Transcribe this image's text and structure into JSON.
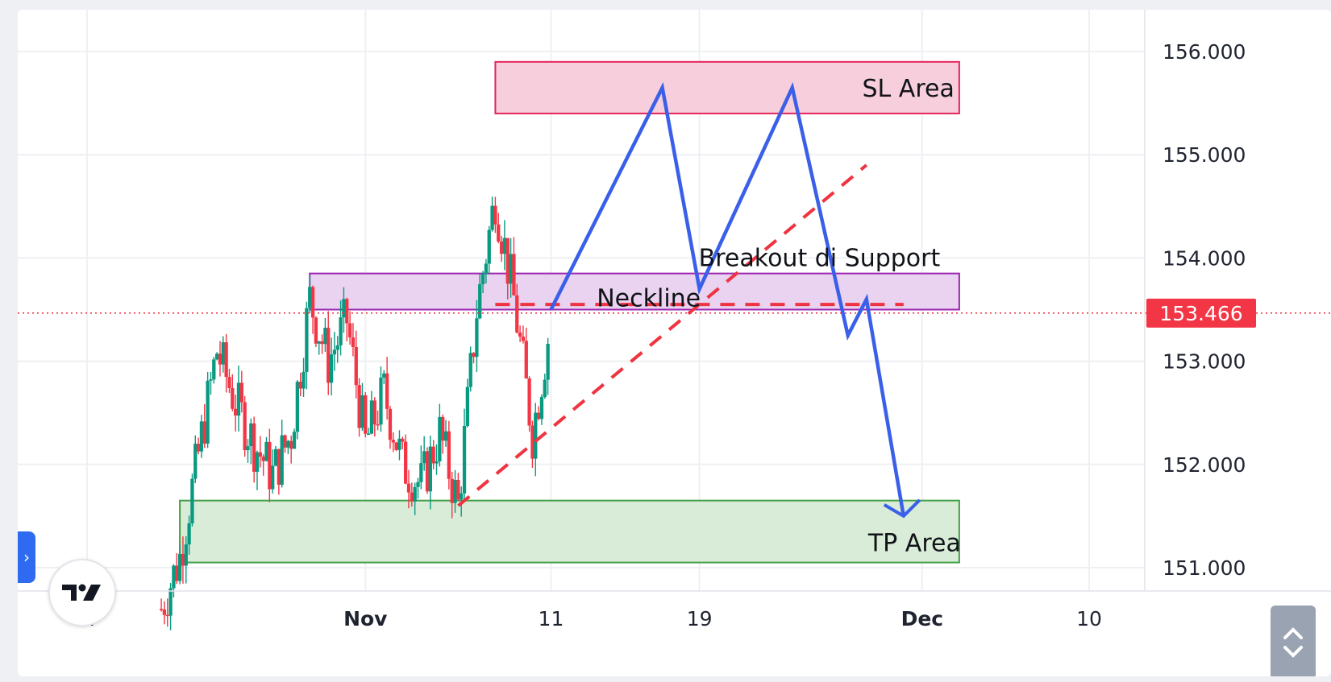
{
  "chart_data": {
    "type": "candlestick",
    "y_axis": {
      "ticks": [
        "156.000",
        "155.000",
        "154.000",
        "153.000",
        "152.000",
        "151.000"
      ],
      "tick_values": [
        156,
        155,
        154,
        153,
        152,
        151
      ],
      "range": [
        150.7,
        156.5
      ],
      "side": "right"
    },
    "x_axis": {
      "ticks": [
        {
          "label": "17",
          "date": "2024-10-17",
          "bold": false
        },
        {
          "label": "Nov",
          "date": "2024-11-01",
          "bold": true
        },
        {
          "label": "11",
          "date": "2024-11-11",
          "bold": false
        },
        {
          "label": "19",
          "date": "2024-11-19",
          "bold": false
        },
        {
          "label": "Dec",
          "date": "2024-12-01",
          "bold": true
        },
        {
          "label": "10",
          "date": "2024-12-10",
          "bold": false
        }
      ],
      "range": [
        "2024-10-17",
        "2024-12-10"
      ]
    },
    "last_price": {
      "label": "153.466",
      "value": 153.466,
      "color": "#f23645"
    },
    "colors": {
      "up": "#089981",
      "down": "#f23645",
      "projection": "#3a5fe8",
      "trendline": "#ef3340"
    },
    "price_anchors": [
      {
        "date": "2024-10-21",
        "value": 150.6
      },
      {
        "date": "2024-10-22",
        "value": 151.1
      },
      {
        "date": "2024-10-23",
        "value": 152.1
      },
      {
        "date": "2024-10-24",
        "value": 153.1
      },
      {
        "date": "2024-10-25",
        "value": 152.6
      },
      {
        "date": "2024-10-26",
        "value": 152.2
      },
      {
        "date": "2024-10-27",
        "value": 151.9
      },
      {
        "date": "2024-10-28",
        "value": 152.3
      },
      {
        "date": "2024-10-29",
        "value": 153.6
      },
      {
        "date": "2024-10-30",
        "value": 153.0
      },
      {
        "date": "2024-10-31",
        "value": 153.4
      },
      {
        "date": "2024-11-01",
        "value": 152.2
      },
      {
        "date": "2024-11-02",
        "value": 152.7
      },
      {
        "date": "2024-11-03",
        "value": 152.0
      },
      {
        "date": "2024-11-04",
        "value": 151.8
      },
      {
        "date": "2024-11-05",
        "value": 152.3
      },
      {
        "date": "2024-11-06",
        "value": 151.6
      },
      {
        "date": "2024-11-07",
        "value": 153.5
      },
      {
        "date": "2024-11-08",
        "value": 154.6
      },
      {
        "date": "2024-11-09",
        "value": 153.6
      },
      {
        "date": "2024-11-10",
        "value": 152.3
      },
      {
        "date": "2024-11-11",
        "value": 153.4
      }
    ],
    "zones": [
      {
        "name": "sl",
        "label": "SL Area",
        "start": "2024-11-08",
        "end": "2024-12-03",
        "low": 155.4,
        "high": 155.9,
        "fill": "#f7cfdc",
        "stroke": "#e3245c"
      },
      {
        "name": "neckline",
        "label": "Neckline",
        "start": "2024-10-29",
        "end": "2024-12-03",
        "low": 153.5,
        "high": 153.85,
        "fill": "#ead3f0",
        "stroke": "#9c27b0"
      },
      {
        "name": "tp",
        "label": "TP Area",
        "start": "2024-10-22",
        "end": "2024-12-03",
        "low": 151.05,
        "high": 151.65,
        "fill": "#d8ecd8",
        "stroke": "#43a047"
      }
    ],
    "annotations": [
      {
        "name": "breakout",
        "text": "Breakout di Support",
        "date": "2024-11-23",
        "value": 154.0
      }
    ],
    "trendlines": [
      {
        "name": "rising-support",
        "points": [
          {
            "date": "2024-11-06",
            "value": 151.6
          },
          {
            "date": "2024-11-28",
            "value": 154.9
          }
        ]
      },
      {
        "name": "neckline-level",
        "points": [
          {
            "date": "2024-11-08",
            "value": 153.55
          },
          {
            "date": "2024-11-30",
            "value": 153.55
          }
        ]
      }
    ],
    "projection": [
      {
        "date": "2024-11-11",
        "value": 153.5
      },
      {
        "date": "2024-11-17",
        "value": 155.65
      },
      {
        "date": "2024-11-19",
        "value": 153.7
      },
      {
        "date": "2024-11-24",
        "value": 155.65
      },
      {
        "date": "2024-11-27",
        "value": 153.25
      },
      {
        "date": "2024-11-28",
        "value": 153.6
      },
      {
        "date": "2024-11-30",
        "value": 151.5
      }
    ]
  }
}
